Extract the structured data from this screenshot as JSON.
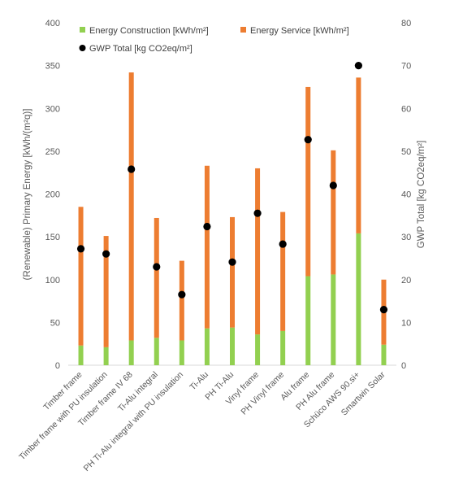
{
  "chart_data": {
    "type": "bar",
    "stacked": true,
    "categories": [
      "Timber frame",
      "Timber frame with PU insulation",
      "Timber frame IV 68",
      "Ti-Alu integral",
      "PH Ti-Alu integral with PU insulation",
      "Ti-Alu",
      "PH Ti-Alu",
      "Vinyl frame",
      "PH Vinyl frame",
      "Alu frame",
      "PH Alu frame",
      "Schüco AWS 90.si+",
      "Smartwin Solar"
    ],
    "series": [
      {
        "name": "Energy Construction [kWh/m²]",
        "axis": "left",
        "color": "#92D050",
        "values": [
          23,
          21,
          29,
          32,
          29,
          43,
          44,
          36,
          40,
          104,
          106,
          154,
          24
        ]
      },
      {
        "name": "Energy Service [kWh/m²]",
        "axis": "left",
        "color": "#ED7D31",
        "values": [
          162,
          130,
          313,
          140,
          93,
          190,
          129,
          194,
          139,
          221,
          145,
          182,
          76
        ]
      },
      {
        "name": "GWP Total [kg CO2eq/m²]",
        "axis": "right",
        "type": "scatter",
        "color": "#000000",
        "values": [
          27.2,
          26.0,
          45.8,
          23.0,
          16.5,
          32.4,
          24.1,
          35.5,
          28.3,
          52.7,
          42.0,
          70.0,
          13.0
        ]
      }
    ],
    "ylabel": "(Renewable) Primary Energy [kWh/(m²q)]",
    "ylabel_right": "GWP Total [kg CO2eq/m²]",
    "ylim": [
      0,
      400
    ],
    "yticks": [
      0,
      50,
      100,
      150,
      200,
      250,
      300,
      350,
      400
    ],
    "ylim_right": [
      0,
      80
    ],
    "yticks_right": [
      0,
      10,
      20,
      30,
      40,
      50,
      60,
      70,
      80
    ],
    "grid": false,
    "legend_position": "top"
  }
}
